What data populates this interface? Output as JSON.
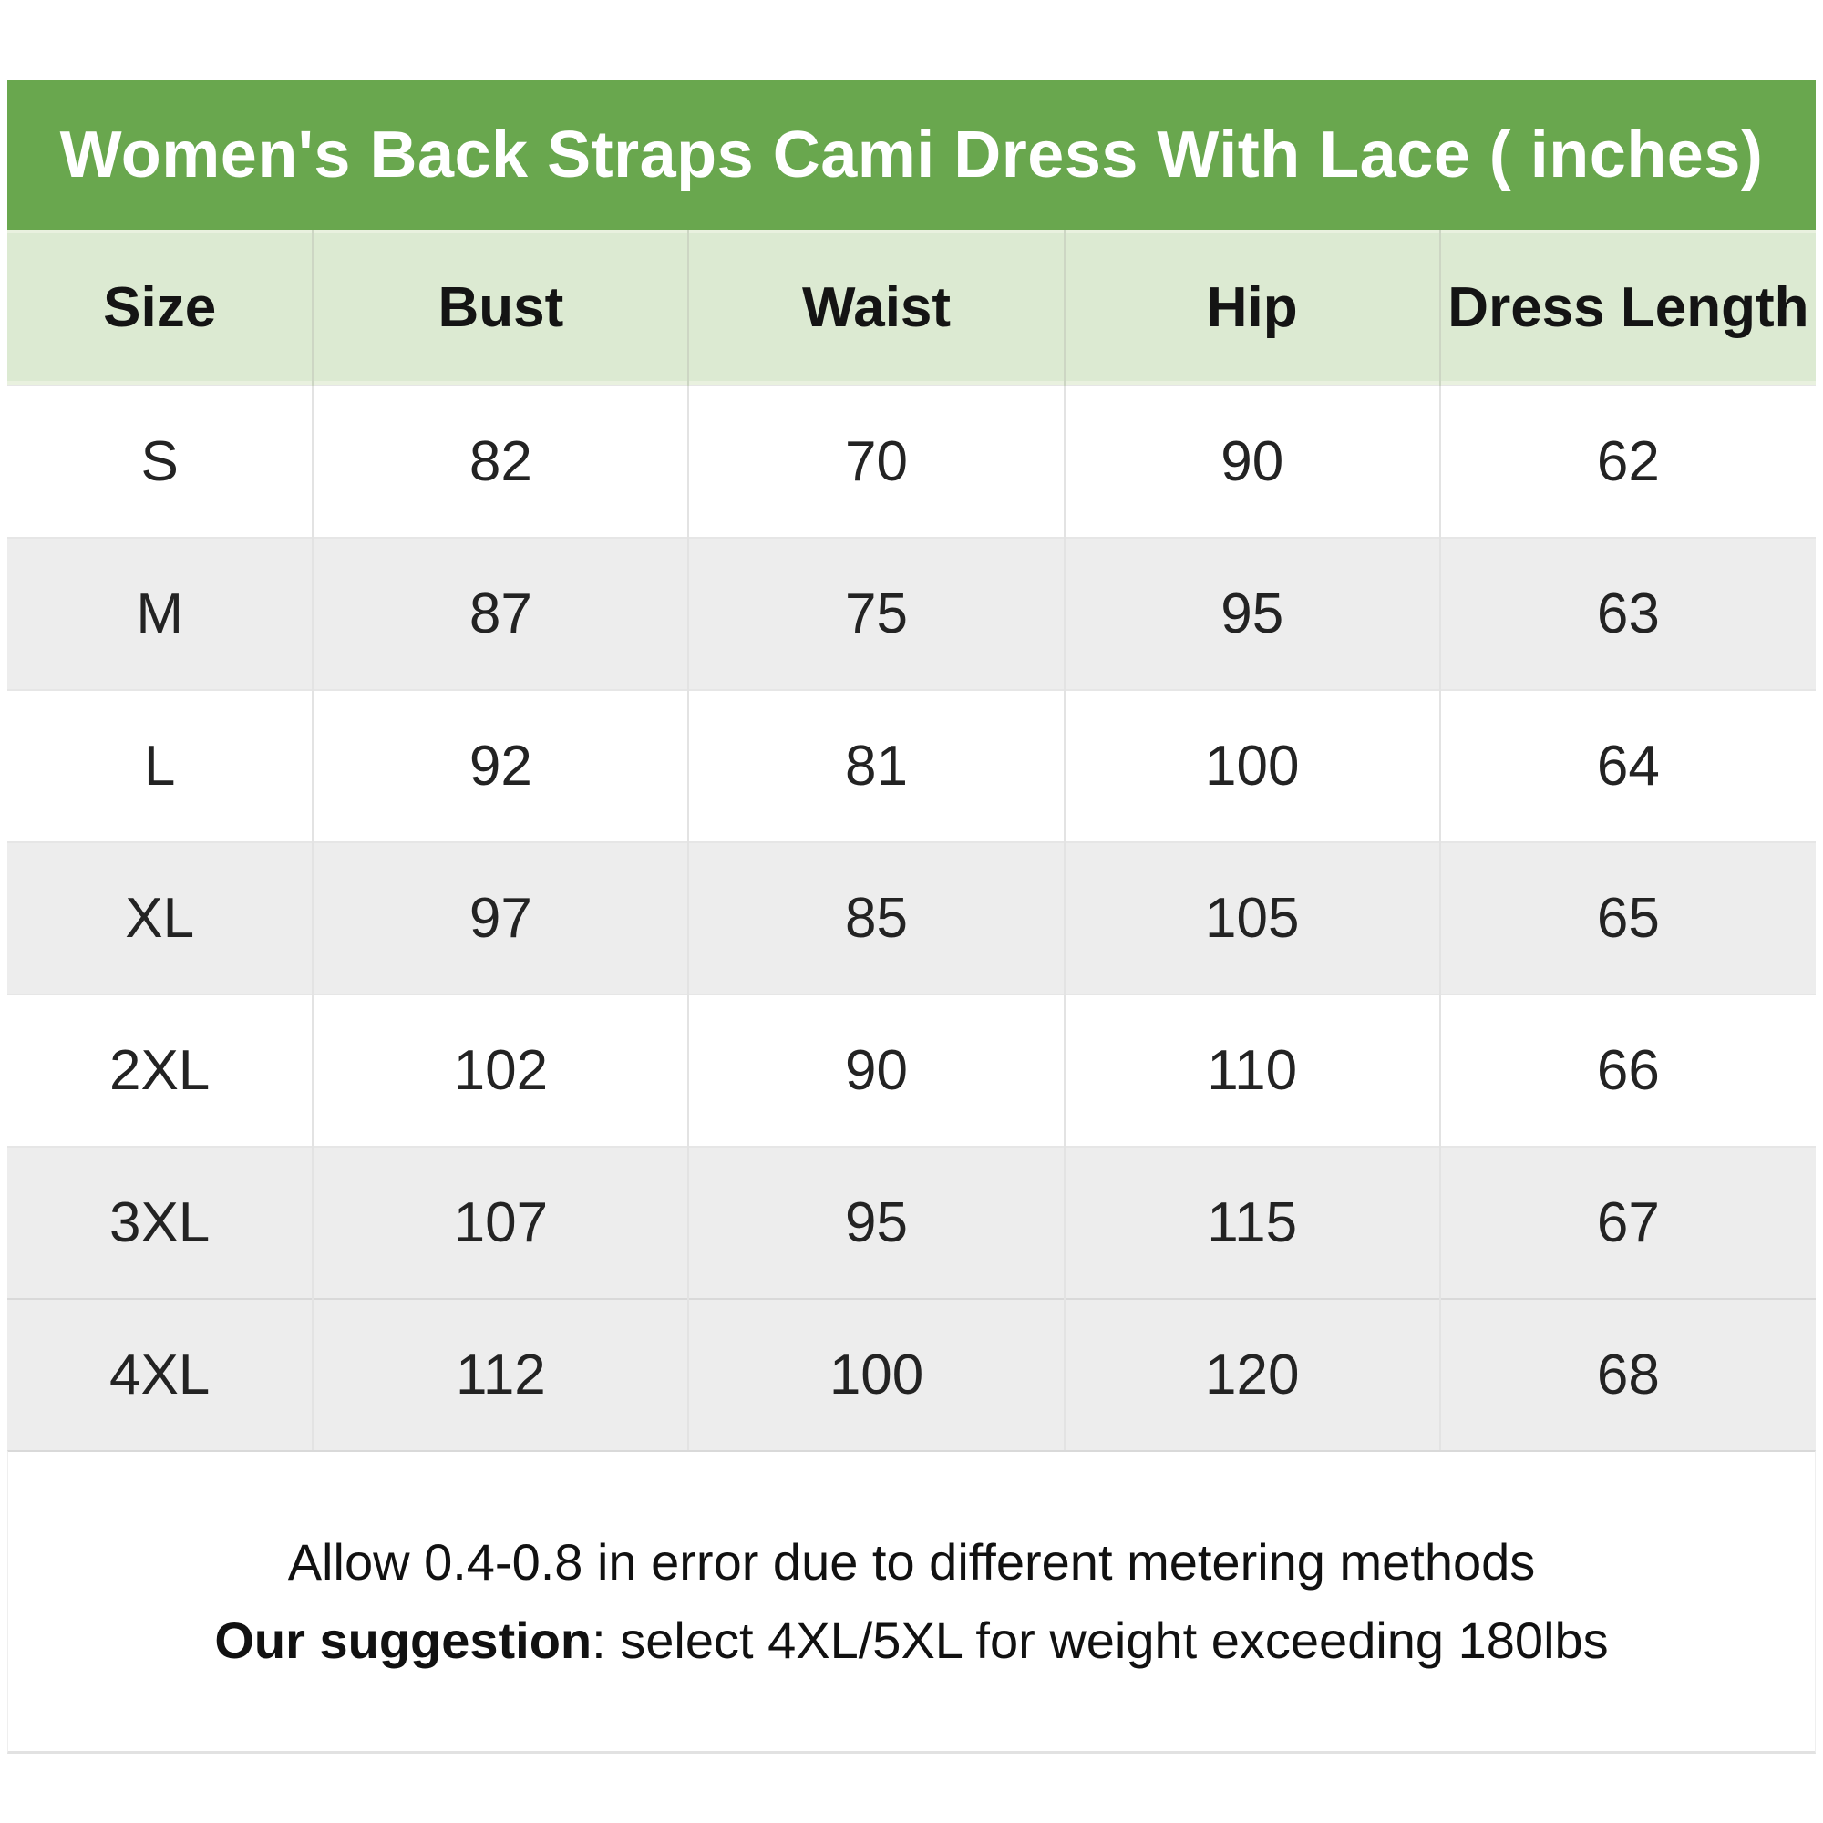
{
  "chart_data": {
    "type": "table",
    "title": "Women's Back Straps Cami Dress With Lace ( inches)",
    "unit_note": "inches",
    "columns": [
      "Size",
      "Bust",
      "Waist",
      "Hip",
      "Dress Length"
    ],
    "rows": [
      [
        "S",
        "82",
        "70",
        "90",
        "62"
      ],
      [
        "M",
        "87",
        "75",
        "95",
        "63"
      ],
      [
        "L",
        "92",
        "81",
        "100",
        "64"
      ],
      [
        "XL",
        "97",
        "85",
        "105",
        "65"
      ],
      [
        "2XL",
        "102",
        "90",
        "110",
        "66"
      ],
      [
        "3XL",
        "107",
        "95",
        "115",
        "67"
      ],
      [
        "4XL",
        "112",
        "100",
        "120",
        "68"
      ]
    ],
    "notes": [
      "Allow 0.4-0.8 in error due to different metering methods",
      "Our suggestion: select 4XL/5XL for weight exceeding 180lbs"
    ]
  },
  "footnote": {
    "line1": "Allow 0.4-0.8 in error due to different metering methods",
    "line2_bold": "Our suggestion",
    "line2_rest": ": select 4XL/5XL for weight exceeding 180lbs"
  },
  "colors": {
    "title_bar_bg": "#69a74e",
    "title_text": "#ffffff",
    "header_row_bg": "#dcead2",
    "alt_row_bg": "#ededed",
    "body_text": "#232323"
  }
}
